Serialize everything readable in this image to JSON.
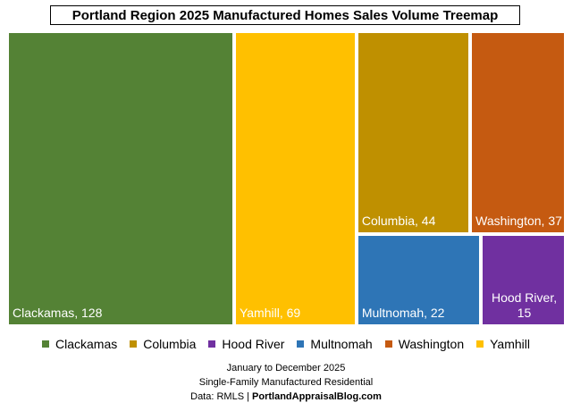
{
  "chart_data": {
    "type": "treemap",
    "title": "Portland Region 2025 Manufactured Homes Sales Volume Treemap",
    "items": [
      {
        "name": "Clackamas",
        "value": 128,
        "label": "Clackamas, 128",
        "color": "#548235"
      },
      {
        "name": "Yamhill",
        "value": 69,
        "label": "Yamhill, 69",
        "color": "#FFC000"
      },
      {
        "name": "Columbia",
        "value": 44,
        "label": "Columbia, 44",
        "color": "#BF9000"
      },
      {
        "name": "Washington",
        "value": 37,
        "label": "Washington, 37",
        "color": "#C55A11"
      },
      {
        "name": "Multnomah",
        "value": 22,
        "label": "Multnomah, 22",
        "color": "#2E75B6"
      },
      {
        "name": "Hood River",
        "value": 15,
        "label": "Hood River, 15",
        "color": "#7030A0"
      }
    ],
    "legend": {
      "placement": "bottom",
      "entries": [
        "Clackamas",
        "Columbia",
        "Hood River",
        "Multnomah",
        "Washington",
        "Yamhill"
      ]
    }
  },
  "footer": {
    "line1": "January to December 2025",
    "line2": "Single-Family Manufactured Residential",
    "source_prefix": "Data: RMLS | ",
    "source_site": "PortlandAppraisalBlog.com"
  }
}
